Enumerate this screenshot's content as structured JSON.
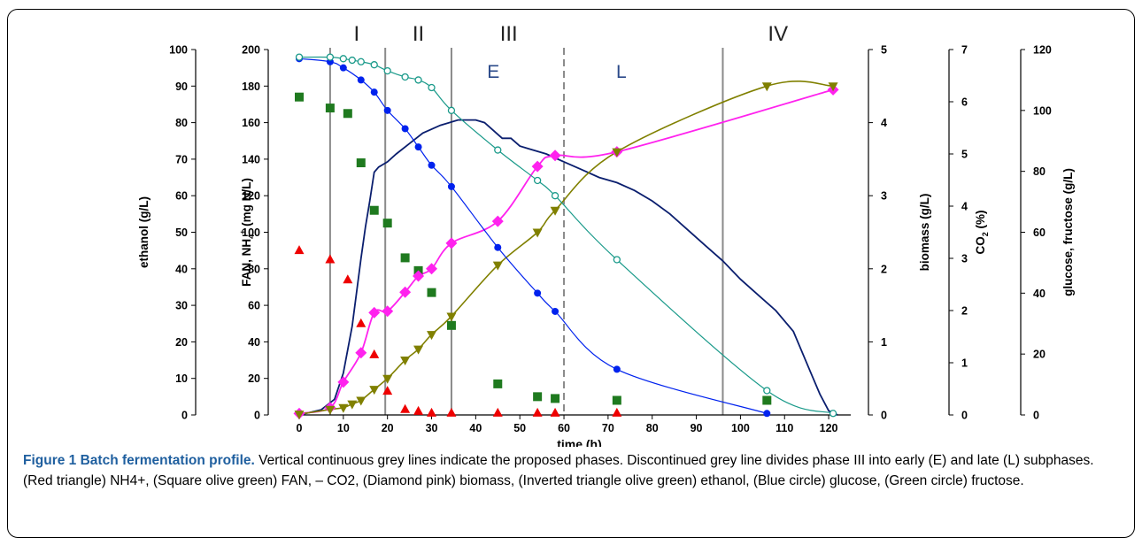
{
  "caption": {
    "title": "Figure 1 Batch fermentation profile.",
    "text": "Vertical continuous grey lines indicate the proposed phases. Discontinued grey line divides phase III into early (E) and late (L) subphases. (Red triangle) NH4+, (Square olive green) FAN, – CO2, (Diamond pink) biomass, (Inverted triangle olive green) ethanol, (Blue circle) glucose, (Green circle) fructose."
  },
  "chart_data": {
    "type": "scatter",
    "xlabel": "time (h)",
    "xlim": [
      0,
      125
    ],
    "xticks": [
      0,
      10,
      20,
      30,
      40,
      50,
      60,
      70,
      80,
      90,
      100,
      110,
      120
    ],
    "axes": [
      {
        "id": "ethanol",
        "label": "ethanol (g/L)",
        "range": [
          0,
          100
        ],
        "ticks": [
          0,
          10,
          20,
          30,
          40,
          50,
          60,
          70,
          80,
          90,
          100
        ]
      },
      {
        "id": "fan",
        "label": "FAN, NH4+ (mg N/L)",
        "range": [
          0,
          200
        ],
        "ticks": [
          0,
          20,
          40,
          60,
          80,
          100,
          120,
          140,
          160,
          180,
          200
        ]
      },
      {
        "id": "biomass",
        "label": "biomass (g/L)",
        "range": [
          0,
          5
        ],
        "ticks": [
          0,
          1,
          2,
          3,
          4,
          5
        ]
      },
      {
        "id": "co2",
        "label": "CO2 (%)",
        "range": [
          0,
          7
        ],
        "ticks": [
          0,
          1,
          2,
          3,
          4,
          5,
          6,
          7
        ]
      },
      {
        "id": "sugar",
        "label": "glucose, fructose (g/L)",
        "range": [
          0,
          120
        ],
        "ticks": [
          0,
          20,
          40,
          60,
          80,
          100,
          120
        ]
      }
    ],
    "phases": {
      "solid_lines_x": [
        7,
        19.5,
        34.5,
        96
      ],
      "dashed_line_x": 60,
      "labels": [
        {
          "text": "I",
          "x": 13
        },
        {
          "text": "II",
          "x": 27
        },
        {
          "text": "III",
          "x": 47.5
        },
        {
          "text": "IV",
          "x": 108.5
        }
      ],
      "sub_labels": [
        {
          "text": "E",
          "x": 44
        },
        {
          "text": "L",
          "x": 73
        }
      ]
    },
    "series": [
      {
        "name": "NH4+",
        "axis": "fan",
        "marker": "triangle",
        "color": "#ee0000",
        "x": [
          0,
          7,
          11,
          14,
          17,
          20,
          24,
          27,
          30,
          34.5,
          45,
          54,
          58,
          72
        ],
        "y": [
          90,
          85,
          74,
          50,
          33,
          13,
          3,
          2,
          1,
          1,
          1,
          1,
          1,
          1
        ]
      },
      {
        "name": "FAN",
        "axis": "fan",
        "marker": "square",
        "color": "#1f7a1f",
        "x": [
          0,
          7,
          11,
          14,
          17,
          20,
          24,
          27,
          30,
          34.5,
          45,
          54,
          58,
          72,
          106
        ],
        "y": [
          174,
          168,
          165,
          138,
          112,
          105,
          86,
          79,
          67,
          49,
          17,
          10,
          9,
          8,
          8
        ]
      },
      {
        "name": "CO2",
        "axis": "co2",
        "marker": "none",
        "color": "#0a1e6e",
        "x": [
          0,
          5,
          8,
          10,
          12,
          14,
          15,
          16,
          17,
          18,
          20,
          22,
          25,
          28,
          32,
          36,
          40,
          42,
          44,
          46,
          48,
          50,
          52,
          56,
          60,
          64,
          68,
          72,
          76,
          80,
          84,
          88,
          92,
          96,
          100,
          104,
          108,
          112,
          116,
          118,
          120,
          122
        ],
        "y": [
          0,
          0.1,
          0.3,
          0.8,
          1.7,
          3.0,
          3.6,
          4.1,
          4.65,
          4.75,
          4.85,
          5.0,
          5.2,
          5.4,
          5.55,
          5.65,
          5.65,
          5.6,
          5.45,
          5.3,
          5.3,
          5.15,
          5.1,
          5.0,
          4.85,
          4.7,
          4.55,
          4.45,
          4.3,
          4.1,
          3.85,
          3.55,
          3.25,
          2.95,
          2.6,
          2.3,
          2.0,
          1.6,
          0.8,
          0.4,
          0.08,
          0
        ]
      },
      {
        "name": "biomass",
        "axis": "biomass",
        "marker": "diamond",
        "color": "#ff22ee",
        "x": [
          0,
          7,
          10,
          14,
          17,
          20,
          24,
          27,
          30,
          34.5,
          45,
          54,
          58,
          72,
          121
        ],
        "y": [
          0.02,
          0.1,
          0.45,
          0.85,
          1.4,
          1.42,
          1.68,
          1.9,
          2.0,
          2.35,
          2.65,
          3.4,
          3.55,
          3.6,
          4.45
        ]
      },
      {
        "name": "ethanol",
        "axis": "ethanol",
        "marker": "inv-triangle",
        "color": "#808000",
        "x": [
          0,
          7,
          10,
          12,
          14,
          17,
          20,
          24,
          27,
          30,
          34.5,
          45,
          54,
          58,
          72,
          106,
          121
        ],
        "y": [
          0.2,
          1.5,
          2,
          3,
          4,
          7,
          10,
          15,
          18,
          22,
          27,
          41,
          50,
          56,
          72,
          90,
          90
        ]
      },
      {
        "name": "glucose",
        "axis": "sugar",
        "marker": "circle",
        "color": "#0022ee",
        "x": [
          0,
          7,
          10,
          14,
          17,
          20,
          24,
          27,
          30,
          34.5,
          45,
          54,
          58,
          72,
          106
        ],
        "y": [
          117,
          116,
          114,
          110,
          106,
          100,
          94,
          88,
          82,
          75,
          55,
          40,
          34,
          15,
          0.5
        ]
      },
      {
        "name": "fructose",
        "axis": "sugar",
        "marker": "circle-open",
        "color": "#1a9a8a",
        "x": [
          0,
          7,
          10,
          12,
          14,
          17,
          20,
          24,
          27,
          30,
          34.5,
          45,
          54,
          58,
          72,
          106,
          121
        ],
        "y": [
          117.5,
          117.5,
          117,
          116.5,
          116,
          115,
          113,
          111,
          110,
          107.5,
          100,
          87,
          77,
          72,
          51,
          8,
          0.5
        ]
      }
    ]
  }
}
